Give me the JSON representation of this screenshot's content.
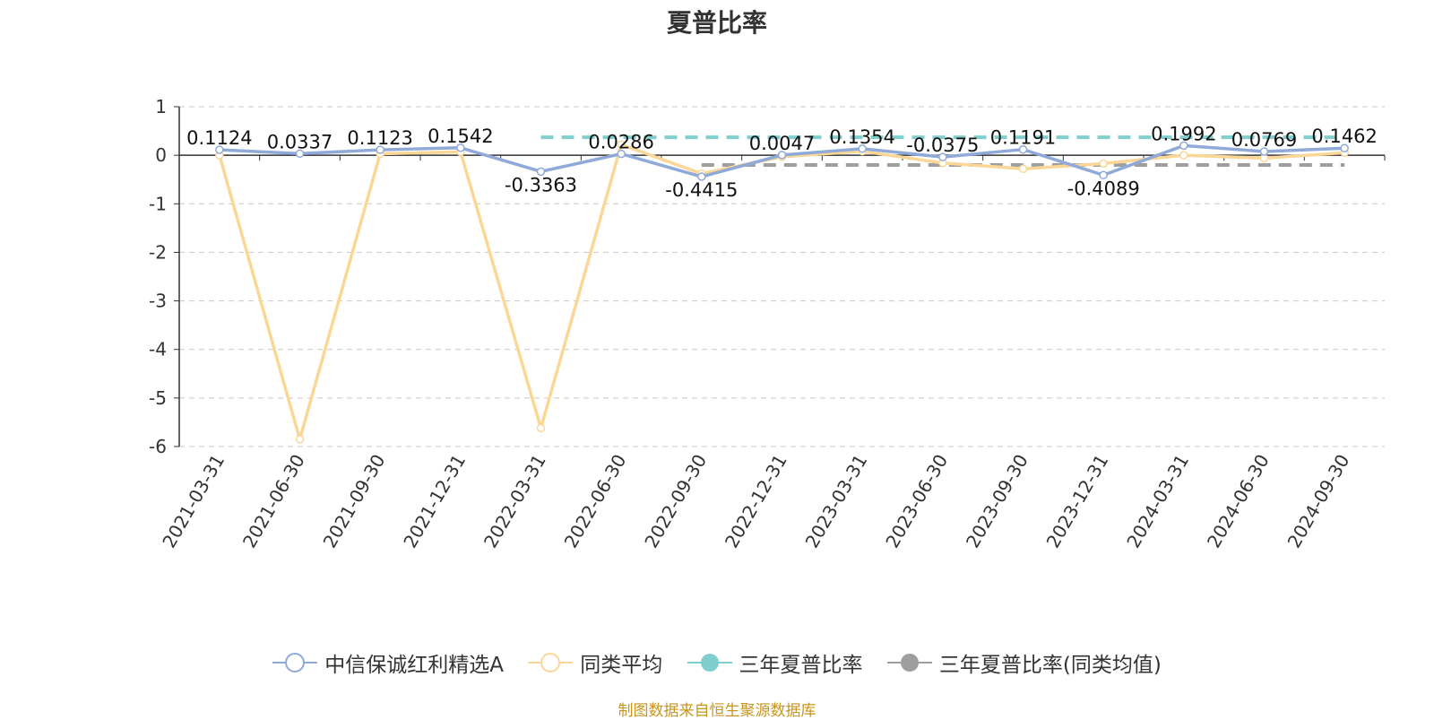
{
  "chart_data": {
    "type": "line",
    "title": "夏普比率",
    "categories": [
      "2021-03-31",
      "2021-06-30",
      "2021-09-30",
      "2021-12-31",
      "2022-03-31",
      "2022-06-30",
      "2022-09-30",
      "2022-12-31",
      "2023-03-31",
      "2023-06-30",
      "2023-09-30",
      "2023-12-31",
      "2024-03-31",
      "2024-06-30",
      "2024-09-30"
    ],
    "ylim": [
      -6,
      1
    ],
    "yticks": [
      "1",
      "0",
      "-1",
      "-2",
      "-3",
      "-4",
      "-5",
      "-6"
    ],
    "grid": true,
    "legend_position": "bottom",
    "series": [
      {
        "name": "中信保诚红利精选A",
        "color": "#8fa9d8",
        "values": [
          0.1124,
          0.0337,
          0.1123,
          0.1542,
          -0.3363,
          0.0286,
          -0.4415,
          0.0047,
          0.1354,
          -0.0375,
          0.1191,
          -0.4089,
          0.1992,
          0.0769,
          0.1462
        ],
        "labels": [
          "0.1124",
          "0.0337",
          "0.1123",
          "0.1542",
          "-0.3363",
          "0.0286",
          "-0.4415",
          "0.0047",
          "0.1354",
          "-0.0375",
          "0.1191",
          "-0.4089",
          "0.1992",
          "0.0769",
          "0.1462"
        ]
      },
      {
        "name": "同类平均",
        "color": "#fad797",
        "values": [
          0.0,
          -5.85,
          0.03,
          0.07,
          -5.62,
          0.22,
          -0.38,
          -0.03,
          0.08,
          -0.16,
          -0.28,
          -0.17,
          0.0,
          -0.06,
          0.05
        ]
      },
      {
        "name": "三年夏普比率",
        "color": "#7fcfcf",
        "dashed": true,
        "value": 0.37,
        "x_start": "2022-03-31",
        "x_end": "2024-09-30"
      },
      {
        "name": "三年夏普比率(同类均值)",
        "color": "#9e9e9e",
        "dashed": true,
        "value": -0.2,
        "x_start": "2022-09-30",
        "x_end": "2024-09-30"
      }
    ],
    "source_note": "制图数据来自恒生聚源数据库"
  }
}
